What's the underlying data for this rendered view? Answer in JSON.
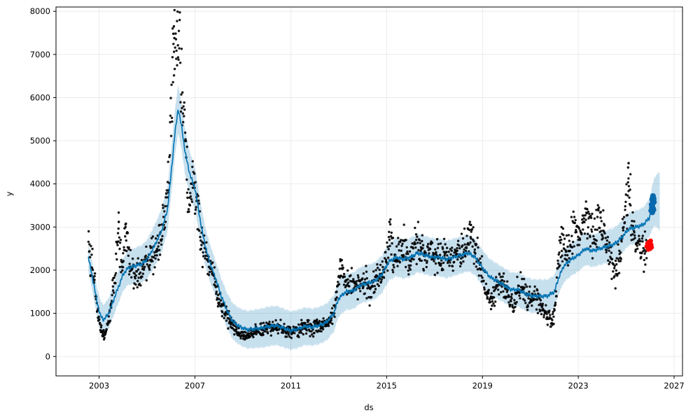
{
  "chart_data": {
    "type": "scatter",
    "title": "",
    "xlabel": "ds",
    "ylabel": "y",
    "xlim": [
      2001.2,
      2027.35
    ],
    "ylim": [
      -450,
      8100
    ],
    "xticks": [
      2003,
      2007,
      2011,
      2015,
      2019,
      2023,
      2027
    ],
    "yticks": [
      0,
      1000,
      2000,
      3000,
      4000,
      5000,
      6000,
      7000,
      8000
    ],
    "grid": true,
    "legend_position": "none",
    "colors": {
      "actual": "#000000",
      "forecast_line": "#0072B2",
      "uncertainty_band": "#0072B2",
      "forecast_cluster": "#0768ad",
      "recent_points": "#ff0000",
      "gridline": "#e7e7e7",
      "spine": "#000000"
    },
    "series": {
      "actual": {
        "name": "observed-values-black-dots",
        "color": "#000000",
        "marker_radius": 1.7,
        "domain": [
          2002.55,
          2025.85
        ],
        "sample_step_years": 0.014,
        "noise": {
          "seed": 42,
          "sigma_base": 35,
          "sigma_slope": 0.075,
          "clamp_sigmas": 2.3
        },
        "trend_keypoints": [
          [
            2002.55,
            2900
          ],
          [
            2002.62,
            2400
          ],
          [
            2002.72,
            2050
          ],
          [
            2002.82,
            1650
          ],
          [
            2002.92,
            1150
          ],
          [
            2003.02,
            780
          ],
          [
            2003.12,
            560
          ],
          [
            2003.22,
            520
          ],
          [
            2003.32,
            700
          ],
          [
            2003.45,
            1000
          ],
          [
            2003.55,
            1400
          ],
          [
            2003.65,
            1900
          ],
          [
            2003.75,
            2400
          ],
          [
            2003.82,
            2950
          ],
          [
            2003.9,
            2300
          ],
          [
            2004.0,
            2150
          ],
          [
            2004.1,
            2900
          ],
          [
            2004.2,
            2400
          ],
          [
            2004.35,
            2000
          ],
          [
            2004.5,
            1850
          ],
          [
            2004.65,
            1950
          ],
          [
            2004.8,
            2100
          ],
          [
            2005.0,
            2250
          ],
          [
            2005.2,
            2350
          ],
          [
            2005.4,
            2500
          ],
          [
            2005.6,
            2800
          ],
          [
            2005.75,
            3300
          ],
          [
            2005.9,
            4100
          ],
          [
            2006.0,
            5300
          ],
          [
            2006.08,
            6600
          ],
          [
            2006.15,
            7300
          ],
          [
            2006.25,
            6700
          ],
          [
            2006.35,
            6900
          ],
          [
            2006.45,
            6200
          ],
          [
            2006.55,
            5800
          ],
          [
            2006.65,
            4300
          ],
          [
            2006.72,
            3400
          ],
          [
            2006.8,
            3800
          ],
          [
            2006.9,
            3900
          ],
          [
            2007.0,
            3700
          ],
          [
            2007.1,
            3400
          ],
          [
            2007.25,
            2800
          ],
          [
            2007.4,
            2400
          ],
          [
            2007.55,
            2200
          ],
          [
            2007.7,
            2000
          ],
          [
            2007.85,
            1600
          ],
          [
            2008.0,
            1350
          ],
          [
            2008.2,
            1100
          ],
          [
            2008.4,
            850
          ],
          [
            2008.6,
            650
          ],
          [
            2008.9,
            520
          ],
          [
            2009.2,
            460
          ],
          [
            2009.5,
            560
          ],
          [
            2009.8,
            620
          ],
          [
            2010.1,
            680
          ],
          [
            2010.4,
            700
          ],
          [
            2010.7,
            620
          ],
          [
            2011.0,
            560
          ],
          [
            2011.3,
            600
          ],
          [
            2011.6,
            700
          ],
          [
            2011.9,
            650
          ],
          [
            2012.2,
            700
          ],
          [
            2012.5,
            780
          ],
          [
            2012.8,
            950
          ],
          [
            2013.0,
            1800
          ],
          [
            2013.15,
            2000
          ],
          [
            2013.3,
            1600
          ],
          [
            2013.5,
            1750
          ],
          [
            2013.7,
            1600
          ],
          [
            2013.9,
            1750
          ],
          [
            2014.1,
            1850
          ],
          [
            2014.3,
            1500
          ],
          [
            2014.5,
            1700
          ],
          [
            2014.7,
            1800
          ],
          [
            2014.9,
            2000
          ],
          [
            2015.05,
            2400
          ],
          [
            2015.15,
            2900
          ],
          [
            2015.3,
            2300
          ],
          [
            2015.5,
            2500
          ],
          [
            2015.7,
            2600
          ],
          [
            2015.9,
            2200
          ],
          [
            2016.1,
            2500
          ],
          [
            2016.3,
            2600
          ],
          [
            2016.5,
            2450
          ],
          [
            2016.7,
            2300
          ],
          [
            2016.9,
            2350
          ],
          [
            2017.1,
            2400
          ],
          [
            2017.3,
            2300
          ],
          [
            2017.5,
            2250
          ],
          [
            2017.7,
            2350
          ],
          [
            2017.9,
            2300
          ],
          [
            2018.1,
            2350
          ],
          [
            2018.3,
            2500
          ],
          [
            2018.5,
            2850
          ],
          [
            2018.65,
            2600
          ],
          [
            2018.8,
            2300
          ],
          [
            2019.0,
            1900
          ],
          [
            2019.2,
            1500
          ],
          [
            2019.4,
            1350
          ],
          [
            2019.6,
            1600
          ],
          [
            2019.8,
            1700
          ],
          [
            2020.0,
            1500
          ],
          [
            2020.2,
            1300
          ],
          [
            2020.3,
            1100
          ],
          [
            2020.45,
            1500
          ],
          [
            2020.6,
            1600
          ],
          [
            2020.8,
            1400
          ],
          [
            2021.0,
            1300
          ],
          [
            2021.2,
            1450
          ],
          [
            2021.4,
            1200
          ],
          [
            2021.6,
            1000
          ],
          [
            2021.8,
            850
          ],
          [
            2021.95,
            800
          ],
          [
            2022.05,
            1300
          ],
          [
            2022.15,
            2100
          ],
          [
            2022.25,
            2600
          ],
          [
            2022.4,
            2550
          ],
          [
            2022.55,
            2450
          ],
          [
            2022.7,
            2700
          ],
          [
            2022.9,
            2900
          ],
          [
            2023.05,
            2700
          ],
          [
            2023.2,
            3100
          ],
          [
            2023.35,
            3300
          ],
          [
            2023.5,
            2900
          ],
          [
            2023.65,
            2700
          ],
          [
            2023.8,
            2900
          ],
          [
            2023.95,
            3100
          ],
          [
            2024.1,
            2700
          ],
          [
            2024.25,
            2400
          ],
          [
            2024.4,
            2100
          ],
          [
            2024.55,
            2000
          ],
          [
            2024.7,
            2300
          ],
          [
            2024.85,
            2800
          ],
          [
            2025.0,
            3400
          ],
          [
            2025.1,
            4200
          ],
          [
            2025.2,
            3300
          ],
          [
            2025.35,
            2700
          ],
          [
            2025.5,
            2500
          ],
          [
            2025.65,
            2450
          ],
          [
            2025.85,
            2500
          ]
        ],
        "extra_points": [
          [
            2006.12,
            7650
          ],
          [
            2006.1,
            7480
          ],
          [
            2006.14,
            7380
          ],
          [
            2015.12,
            3120
          ],
          [
            2018.52,
            3050
          ],
          [
            2025.1,
            4480
          ],
          [
            2025.08,
            4380
          ],
          [
            2003.82,
            3120
          ],
          [
            2004.1,
            3060
          ],
          [
            2022.3,
            3000
          ],
          [
            2023.35,
            3420
          ],
          [
            2003.17,
            470
          ],
          [
            2009.25,
            440
          ]
        ]
      },
      "yhat": {
        "name": "forecast-line",
        "color": "#0072B2",
        "stroke_width": 1.6,
        "domain": [
          2002.55,
          2026.18
        ],
        "wiggle": {
          "amp": 36,
          "period_years": 0.085
        },
        "keypoints": [
          [
            2002.55,
            2300
          ],
          [
            2002.7,
            1900
          ],
          [
            2002.9,
            1300
          ],
          [
            2003.05,
            950
          ],
          [
            2003.2,
            850
          ],
          [
            2003.4,
            1000
          ],
          [
            2003.6,
            1300
          ],
          [
            2003.8,
            1600
          ],
          [
            2004.0,
            1900
          ],
          [
            2004.2,
            2050
          ],
          [
            2004.5,
            2100
          ],
          [
            2004.8,
            2150
          ],
          [
            2005.0,
            2250
          ],
          [
            2005.3,
            2550
          ],
          [
            2005.6,
            2900
          ],
          [
            2005.85,
            3400
          ],
          [
            2006.0,
            4200
          ],
          [
            2006.15,
            5100
          ],
          [
            2006.3,
            5750
          ],
          [
            2006.45,
            5300
          ],
          [
            2006.6,
            4700
          ],
          [
            2006.8,
            4200
          ],
          [
            2007.0,
            3900
          ],
          [
            2007.15,
            3400
          ],
          [
            2007.3,
            2900
          ],
          [
            2007.5,
            2400
          ],
          [
            2007.7,
            2050
          ],
          [
            2007.9,
            1750
          ],
          [
            2008.1,
            1400
          ],
          [
            2008.35,
            1050
          ],
          [
            2008.6,
            800
          ],
          [
            2008.9,
            680
          ],
          [
            2009.2,
            620
          ],
          [
            2009.5,
            640
          ],
          [
            2009.8,
            660
          ],
          [
            2010.1,
            700
          ],
          [
            2010.4,
            720
          ],
          [
            2010.7,
            660
          ],
          [
            2011.0,
            600
          ],
          [
            2011.3,
            640
          ],
          [
            2011.6,
            700
          ],
          [
            2011.9,
            680
          ],
          [
            2012.2,
            720
          ],
          [
            2012.5,
            800
          ],
          [
            2012.8,
            1000
          ],
          [
            2013.0,
            1350
          ],
          [
            2013.3,
            1500
          ],
          [
            2013.6,
            1520
          ],
          [
            2013.9,
            1650
          ],
          [
            2014.2,
            1700
          ],
          [
            2014.5,
            1750
          ],
          [
            2014.8,
            1900
          ],
          [
            2015.1,
            2200
          ],
          [
            2015.4,
            2300
          ],
          [
            2015.7,
            2250
          ],
          [
            2016.0,
            2300
          ],
          [
            2016.3,
            2400
          ],
          [
            2016.6,
            2350
          ],
          [
            2016.9,
            2300
          ],
          [
            2017.2,
            2300
          ],
          [
            2017.5,
            2250
          ],
          [
            2017.8,
            2300
          ],
          [
            2018.1,
            2350
          ],
          [
            2018.4,
            2400
          ],
          [
            2018.7,
            2300
          ],
          [
            2019.0,
            2050
          ],
          [
            2019.3,
            1850
          ],
          [
            2019.6,
            1750
          ],
          [
            2019.9,
            1650
          ],
          [
            2020.2,
            1550
          ],
          [
            2020.5,
            1550
          ],
          [
            2020.8,
            1450
          ],
          [
            2021.1,
            1400
          ],
          [
            2021.4,
            1400
          ],
          [
            2021.7,
            1400
          ],
          [
            2022.0,
            1500
          ],
          [
            2022.2,
            1850
          ],
          [
            2022.4,
            2100
          ],
          [
            2022.7,
            2250
          ],
          [
            2023.0,
            2350
          ],
          [
            2023.3,
            2500
          ],
          [
            2023.6,
            2450
          ],
          [
            2023.9,
            2500
          ],
          [
            2024.2,
            2550
          ],
          [
            2024.5,
            2600
          ],
          [
            2024.8,
            2750
          ],
          [
            2025.1,
            2950
          ],
          [
            2025.4,
            3000
          ],
          [
            2025.7,
            3050
          ],
          [
            2025.95,
            3200
          ],
          [
            2026.18,
            3600
          ]
        ]
      },
      "uncertainty": {
        "name": "uncertainty-interval-band",
        "color": "#0072B2",
        "opacity": 0.22,
        "domain": [
          2002.55,
          2026.4
        ],
        "halfwidth_keypoints": [
          [
            2002.55,
            320
          ],
          [
            2004.0,
            380
          ],
          [
            2006.3,
            550
          ],
          [
            2008.0,
            400
          ],
          [
            2010.0,
            460
          ],
          [
            2012.0,
            430
          ],
          [
            2014.0,
            420
          ],
          [
            2016.0,
            450
          ],
          [
            2018.0,
            430
          ],
          [
            2020.0,
            400
          ],
          [
            2022.0,
            380
          ],
          [
            2024.0,
            380
          ],
          [
            2025.5,
            380
          ],
          [
            2025.95,
            430
          ],
          [
            2026.4,
            680
          ]
        ]
      },
      "forecast_cluster": {
        "name": "future-forecast-points",
        "color": "#0768ad",
        "marker_radius": 4,
        "points": [
          [
            2026.04,
            3380
          ],
          [
            2026.06,
            3520
          ],
          [
            2026.08,
            3640
          ],
          [
            2026.1,
            3460
          ],
          [
            2026.12,
            3720
          ],
          [
            2026.14,
            3400
          ],
          [
            2026.16,
            3580
          ],
          [
            2026.09,
            3340
          ],
          [
            2026.11,
            3690
          ],
          [
            2026.07,
            3450
          ],
          [
            2026.13,
            3560
          ],
          [
            2026.15,
            3660
          ],
          [
            2026.1,
            3550
          ],
          [
            2026.12,
            3430
          ]
        ]
      },
      "recent_actuals": {
        "name": "recent-actual-points-red",
        "color": "#ff0000",
        "marker_radius": 3.4,
        "points": [
          [
            2025.86,
            2550
          ],
          [
            2025.89,
            2620
          ],
          [
            2025.92,
            2480
          ],
          [
            2025.95,
            2650
          ],
          [
            2025.98,
            2560
          ],
          [
            2026.0,
            2500
          ],
          [
            2026.02,
            2680
          ],
          [
            2026.04,
            2590
          ],
          [
            2026.06,
            2530
          ]
        ]
      }
    }
  }
}
